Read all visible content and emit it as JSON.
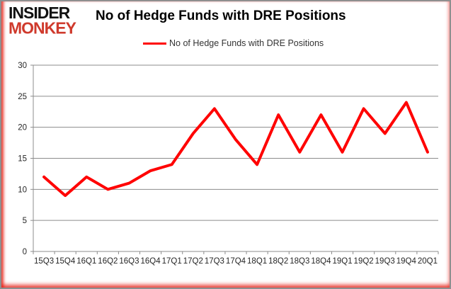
{
  "logo": {
    "line1": "INSIDER",
    "line2": "MONKEY"
  },
  "header": {
    "title": "No of Hedge Funds with DRE Positions"
  },
  "legend": {
    "label": "No of Hedge Funds with DRE Positions",
    "swatch_color": "#ff0000"
  },
  "colors": {
    "accent_red": "#ff0000",
    "logo_red": "#cf3a2c",
    "grid": "#8c8c8c",
    "tick_text": "#262626"
  },
  "chart_data": {
    "type": "line",
    "title": "No of Hedge Funds with DRE Positions",
    "categories": [
      "15Q3",
      "15Q4",
      "16Q1",
      "16Q2",
      "16Q3",
      "16Q4",
      "17Q1",
      "17Q2",
      "17Q3",
      "17Q4",
      "18Q1",
      "18Q2",
      "18Q3",
      "18Q4",
      "19Q1",
      "19Q2",
      "19Q3",
      "19Q4",
      "20Q1"
    ],
    "series": [
      {
        "name": "No of Hedge Funds with DRE Positions",
        "color": "#ff0000",
        "values": [
          12,
          9,
          12,
          10,
          11,
          13,
          14,
          19,
          23,
          18,
          14,
          22,
          16,
          22,
          16,
          23,
          19,
          24,
          16
        ]
      }
    ],
    "xlabel": "",
    "ylabel": "",
    "ylim": [
      0,
      30
    ],
    "yticks": [
      0,
      5,
      10,
      15,
      20,
      25,
      30
    ],
    "grid": true,
    "legend_position": "top-center"
  }
}
